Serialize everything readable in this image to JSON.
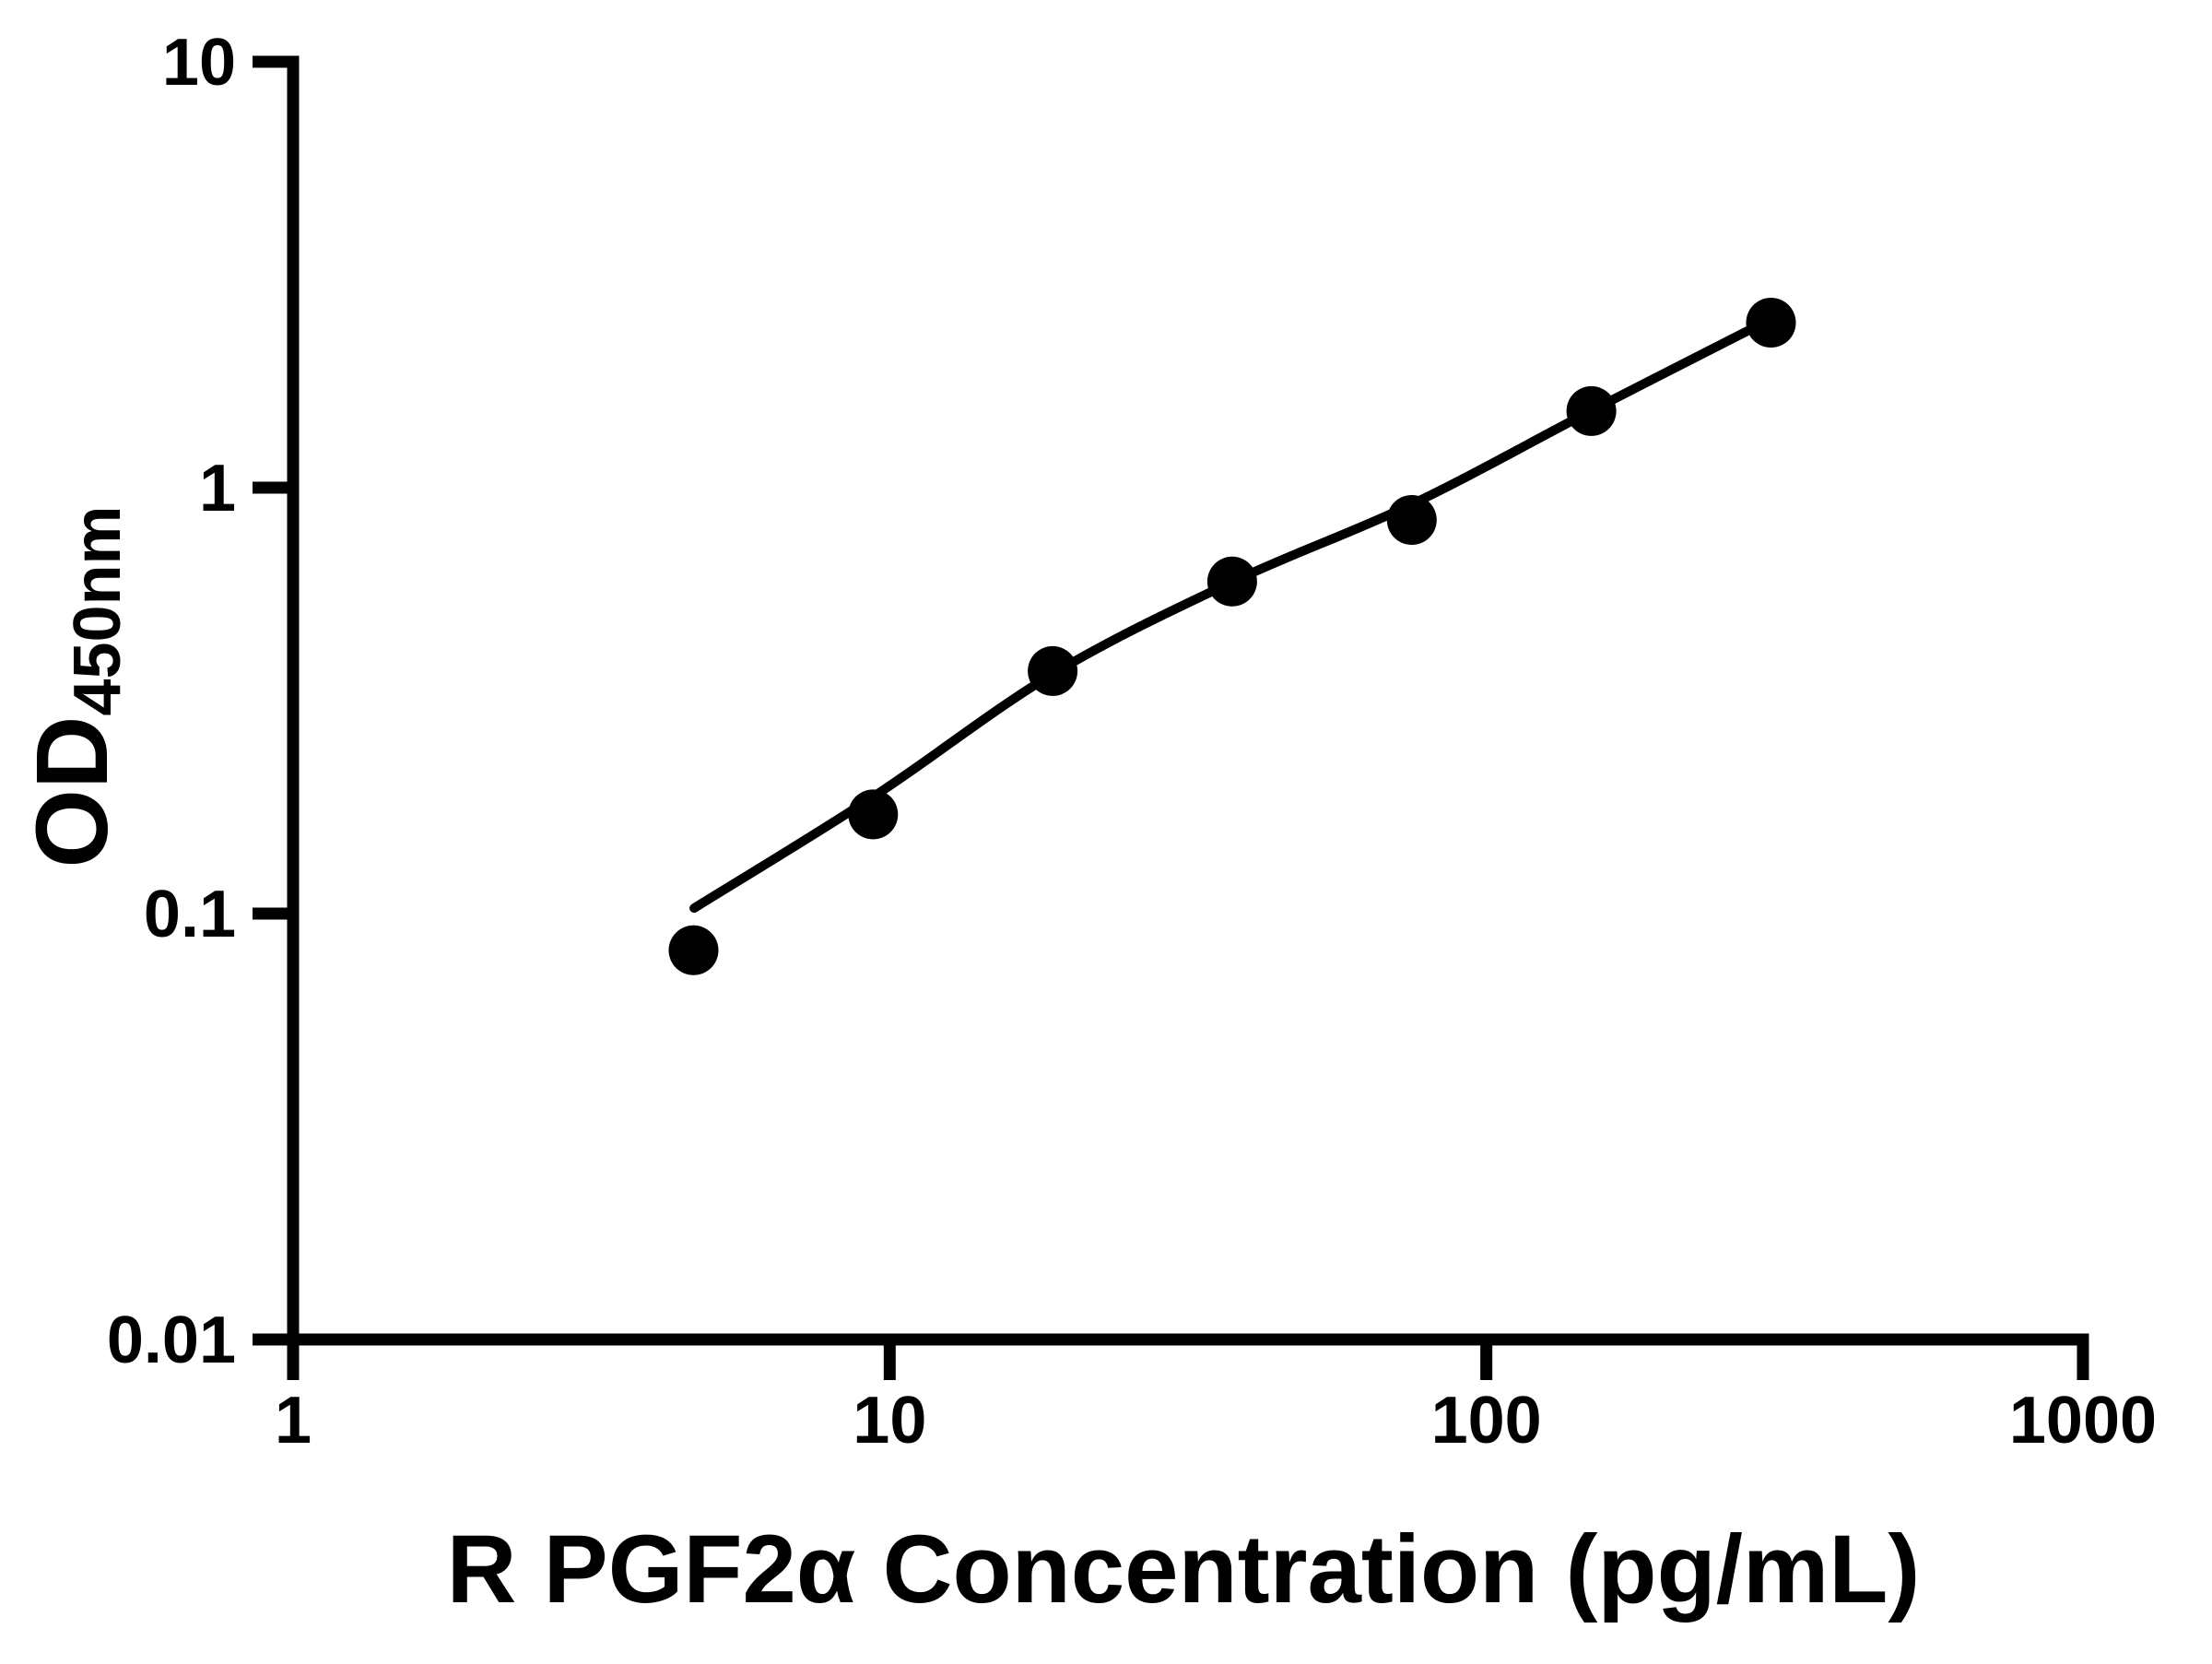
{
  "figure": {
    "background": "#ffffff",
    "ink_color": "#000000"
  },
  "chart_data": {
    "type": "scatter",
    "title": "",
    "xlabel": "R PGF2α Concentration (pg/mL)",
    "ylabel": "OD450nm",
    "ylabel_main": "OD",
    "ylabel_sub": "450nm",
    "x_scale": "log",
    "y_scale": "log",
    "xlim": [
      1,
      1000
    ],
    "ylim": [
      0.01,
      10
    ],
    "x_ticks": [
      {
        "value": 1,
        "label": "1"
      },
      {
        "value": 10,
        "label": "10"
      },
      {
        "value": 100,
        "label": "100"
      },
      {
        "value": 1000,
        "label": "1000"
      }
    ],
    "y_ticks": [
      {
        "value": 0.01,
        "label": "0.01"
      },
      {
        "value": 0.1,
        "label": "0.1"
      },
      {
        "value": 1,
        "label": "1"
      },
      {
        "value": 10,
        "label": "10"
      }
    ],
    "grid": false,
    "legend": null,
    "series": [
      {
        "name": "standard-points",
        "type": "scatter",
        "marker": "filled-circle",
        "color": "#000000",
        "x": [
          4.69,
          9.38,
          18.75,
          37.5,
          75,
          150,
          300
        ],
        "y": [
          0.082,
          0.171,
          0.371,
          0.602,
          0.84,
          1.513,
          2.44
        ]
      },
      {
        "name": "fit-line",
        "type": "line",
        "color": "#000000",
        "x": [
          4.7,
          9.38,
          18.75,
          37.5,
          75,
          150,
          300
        ],
        "y": [
          0.103,
          0.188,
          0.365,
          0.601,
          0.914,
          1.516,
          2.49
        ]
      }
    ]
  }
}
